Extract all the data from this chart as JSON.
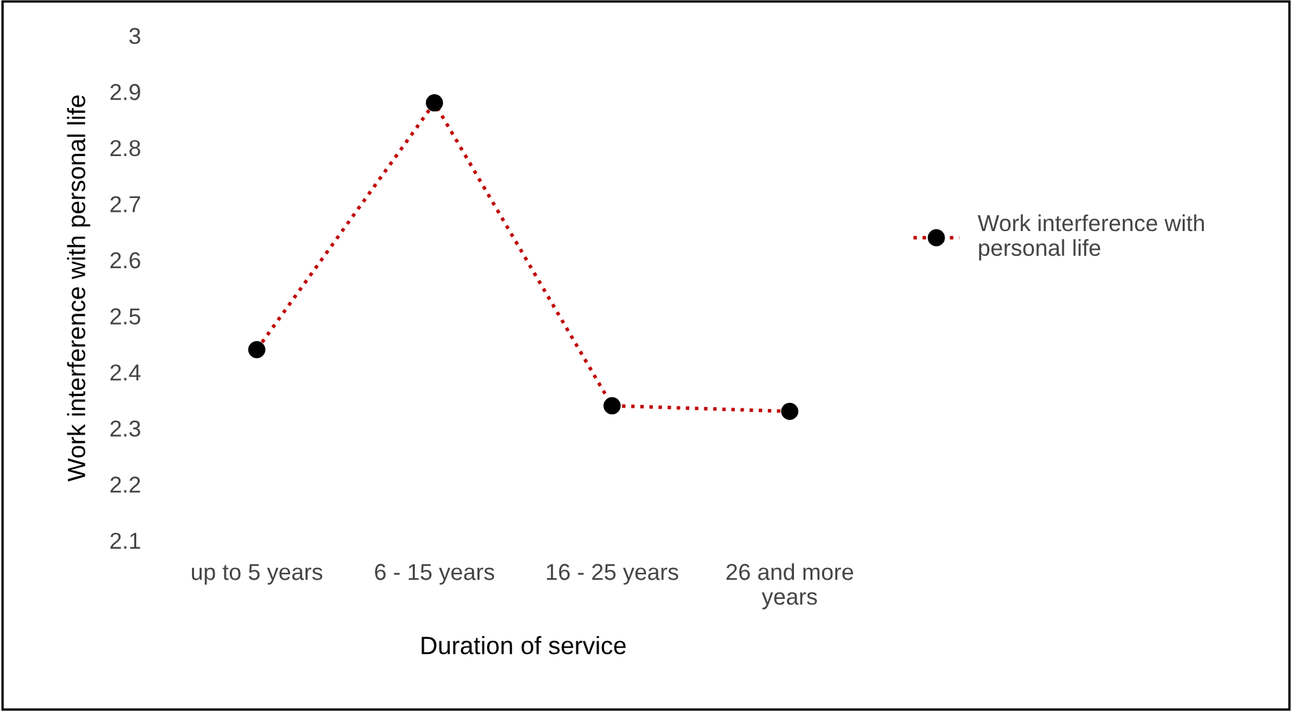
{
  "chart_data": {
    "type": "line",
    "xlabel": "Duration of service",
    "ylabel": "Work interference with personal life",
    "categories": [
      "up to 5 years",
      "6 - 15 years",
      "16 - 25 years",
      "26 and more\nyears"
    ],
    "series": [
      {
        "name": "Work interference with\npersonal life",
        "color": "#c00000",
        "values": [
          2.44,
          2.88,
          2.34,
          2.33
        ]
      }
    ],
    "ylim": [
      2.1,
      3
    ],
    "yticks": [
      2.1,
      2.2,
      2.3,
      2.4,
      2.5,
      2.6,
      2.7,
      2.8,
      2.9,
      3
    ],
    "marker": "circle",
    "line_style": "dotted",
    "legend": "right",
    "grid": false
  }
}
